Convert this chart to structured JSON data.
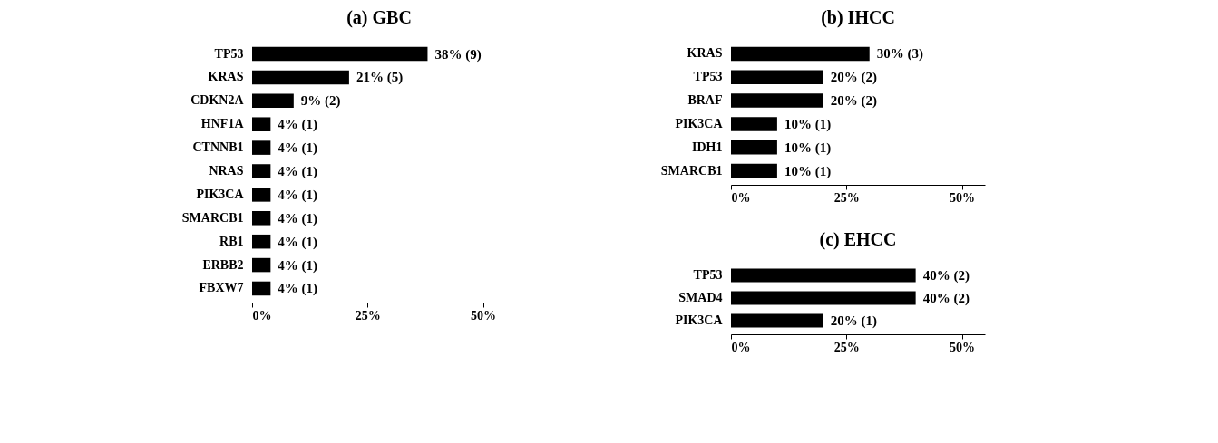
{
  "chart_data": [
    {
      "type": "bar",
      "orientation": "horizontal",
      "title": "(a) GBC",
      "categories": [
        "TP53",
        "KRAS",
        "CDKN2A",
        "HNF1A",
        "CTNNB1",
        "NRAS",
        "PIK3CA",
        "SMARCB1",
        "RB1",
        "ERBB2",
        "FBXW7"
      ],
      "values": [
        38,
        21,
        9,
        4,
        4,
        4,
        4,
        4,
        4,
        4,
        4
      ],
      "color": "#000000",
      "value_labels": [
        "38% (9)",
        "21% (5)",
        "9% (2)",
        "4% (1)",
        "4% (1)",
        "4% (1)",
        "4% (1)",
        "4% (1)",
        "4% (1)",
        "4% (1)",
        "4% (1)"
      ],
      "xlim": [
        0,
        55
      ],
      "xticks": [
        {
          "value": 0,
          "label": "0%"
        },
        {
          "value": 25,
          "label": "25%"
        },
        {
          "value": 50,
          "label": "50%"
        }
      ],
      "grid": false
    },
    {
      "type": "bar",
      "orientation": "horizontal",
      "title": "(b) IHCC",
      "categories": [
        "KRAS",
        "TP53",
        "BRAF",
        "PIK3CA",
        "IDH1",
        "SMARCB1"
      ],
      "values": [
        30,
        20,
        20,
        10,
        10,
        10
      ],
      "color": "#000000",
      "value_labels": [
        "30% (3)",
        "20% (2)",
        "20% (2)",
        "10% (1)",
        "10% (1)",
        "10% (1)"
      ],
      "xlim": [
        0,
        55
      ],
      "xticks": [
        {
          "value": 0,
          "label": "0%"
        },
        {
          "value": 25,
          "label": "25%"
        },
        {
          "value": 50,
          "label": "50%"
        }
      ],
      "grid": false
    },
    {
      "type": "bar",
      "orientation": "horizontal",
      "title": "(c) EHCC",
      "categories": [
        "TP53",
        "SMAD4",
        "PIK3CA"
      ],
      "values": [
        40,
        40,
        20
      ],
      "color": "#000000",
      "value_labels": [
        "40% (2)",
        "40% (2)",
        "20% (1)"
      ],
      "xlim": [
        0,
        55
      ],
      "xticks": [
        {
          "value": 0,
          "label": "0%"
        },
        {
          "value": 25,
          "label": "25%"
        },
        {
          "value": 50,
          "label": "50%"
        }
      ],
      "grid": false
    }
  ]
}
